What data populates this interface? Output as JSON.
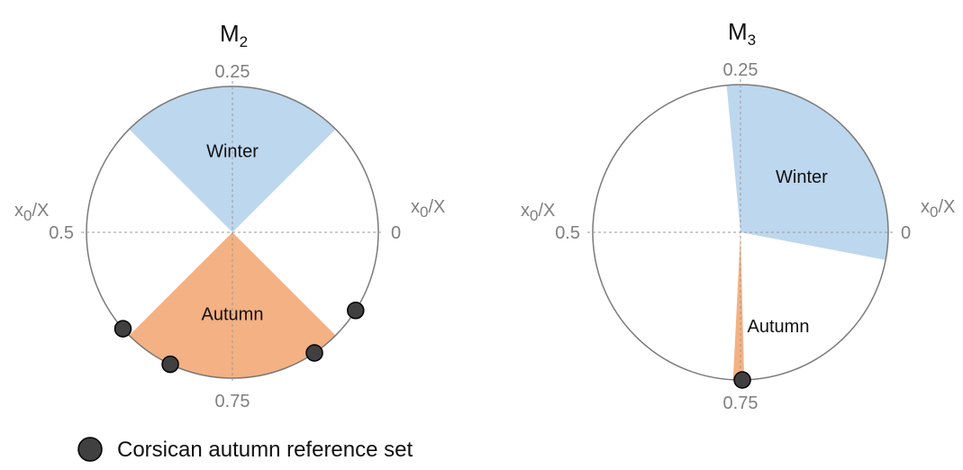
{
  "legend": {
    "label": "Corsican autumn reference set",
    "marker_color": "#404040"
  },
  "chart_data": [
    {
      "type": "circular",
      "title": "M",
      "title_subscript": "2",
      "axis_label": "x0/X",
      "axis_label_sub": "0",
      "axis_label_text": "x",
      "axis_label_tail": "/X",
      "ticks": [
        {
          "value": 0,
          "label": "0"
        },
        {
          "value": 0.25,
          "label": "0.25"
        },
        {
          "value": 0.5,
          "label": "0.5"
        },
        {
          "value": 0.75,
          "label": "0.75"
        }
      ],
      "sectors": [
        {
          "name": "Winter",
          "start": 0.125,
          "end": 0.375,
          "color": "#bdd7ee"
        },
        {
          "name": "Autumn",
          "start": 0.625,
          "end": 0.875,
          "color": "#f4b183"
        }
      ],
      "points": [
        0.615,
        0.68,
        0.845,
        0.91
      ]
    },
    {
      "type": "circular",
      "title": "M",
      "title_subscript": "3",
      "axis_label": "x0/X",
      "axis_label_sub": "0",
      "axis_label_text": "x",
      "axis_label_tail": "/X",
      "ticks": [
        {
          "value": 0,
          "label": "0"
        },
        {
          "value": 0.25,
          "label": "0.25"
        },
        {
          "value": 0.5,
          "label": "0.5"
        },
        {
          "value": 0.75,
          "label": "0.75"
        }
      ],
      "sectors": [
        {
          "name": "Winter",
          "start": 0.97,
          "end": 1.265,
          "color": "#bdd7ee"
        },
        {
          "name": "Autumn",
          "start": 0.742,
          "end": 0.754,
          "color": "#f4b183"
        }
      ],
      "points": [
        0.752
      ]
    }
  ]
}
